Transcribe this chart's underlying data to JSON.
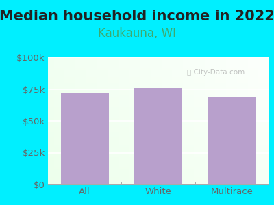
{
  "title": "Median household income in 2022",
  "subtitle": "Kaukauna, WI",
  "categories": [
    "All",
    "White",
    "Multirace"
  ],
  "values": [
    72000,
    76000,
    69000
  ],
  "bar_color": "#b8a0cc",
  "background_outer": "#00efff",
  "yticks": [
    0,
    25000,
    50000,
    75000,
    100000
  ],
  "ytick_labels": [
    "$0",
    "$25k",
    "$50k",
    "$75k",
    "$100k"
  ],
  "ylim": [
    0,
    100000
  ],
  "title_fontsize": 15,
  "subtitle_fontsize": 12,
  "tick_fontsize": 9.5,
  "tick_color": "#666666",
  "subtitle_color": "#3daa6e",
  "watermark": "City-Data.com"
}
